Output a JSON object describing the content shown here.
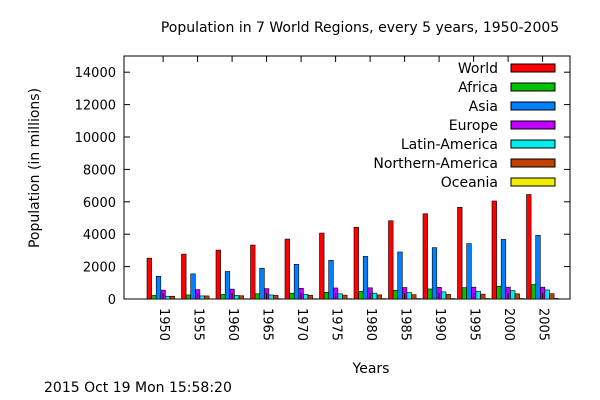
{
  "chart_data": {
    "type": "bar",
    "title": "Population in 7 World Regions, every 5 years, 1950-2005",
    "xlabel": "Years",
    "ylabel": "Population (in millions)",
    "ylim": [
      0,
      15000
    ],
    "yticks": [
      0,
      2000,
      4000,
      6000,
      8000,
      10000,
      12000,
      14000
    ],
    "categories": [
      "1950",
      "1955",
      "1960",
      "1965",
      "1970",
      "1975",
      "1980",
      "1985",
      "1990",
      "1995",
      "2000",
      "2005"
    ],
    "legend_position": "top-right",
    "series": [
      {
        "name": "World",
        "color": "#ff0000",
        "values": [
          2520,
          2770,
          3020,
          3330,
          3700,
          4070,
          4430,
          4830,
          5260,
          5660,
          6050,
          6450
        ]
      },
      {
        "name": "Africa",
        "color": "#00c000",
        "values": [
          220,
          250,
          280,
          320,
          360,
          410,
          470,
          540,
          620,
          700,
          790,
          890
        ]
      },
      {
        "name": "Asia",
        "color": "#0080ff",
        "values": [
          1400,
          1550,
          1700,
          1900,
          2140,
          2390,
          2630,
          2900,
          3170,
          3420,
          3680,
          3930
        ]
      },
      {
        "name": "Europe",
        "color": "#c000ff",
        "values": [
          550,
          580,
          610,
          640,
          660,
          680,
          690,
          710,
          720,
          730,
          730,
          730
        ]
      },
      {
        "name": "Latin-America",
        "color": "#00eeee",
        "values": [
          170,
          190,
          220,
          250,
          290,
          320,
          360,
          400,
          440,
          480,
          520,
          560
        ]
      },
      {
        "name": "Northern-America",
        "color": "#c04000",
        "values": [
          170,
          190,
          200,
          220,
          230,
          240,
          250,
          270,
          280,
          300,
          320,
          330
        ]
      },
      {
        "name": "Oceania",
        "color": "#eeee00",
        "values": [
          13,
          14,
          16,
          18,
          19,
          21,
          23,
          25,
          27,
          29,
          31,
          33
        ]
      }
    ]
  },
  "footer": {
    "timestamp": "2015 Oct 19 Mon 15:58:20"
  }
}
